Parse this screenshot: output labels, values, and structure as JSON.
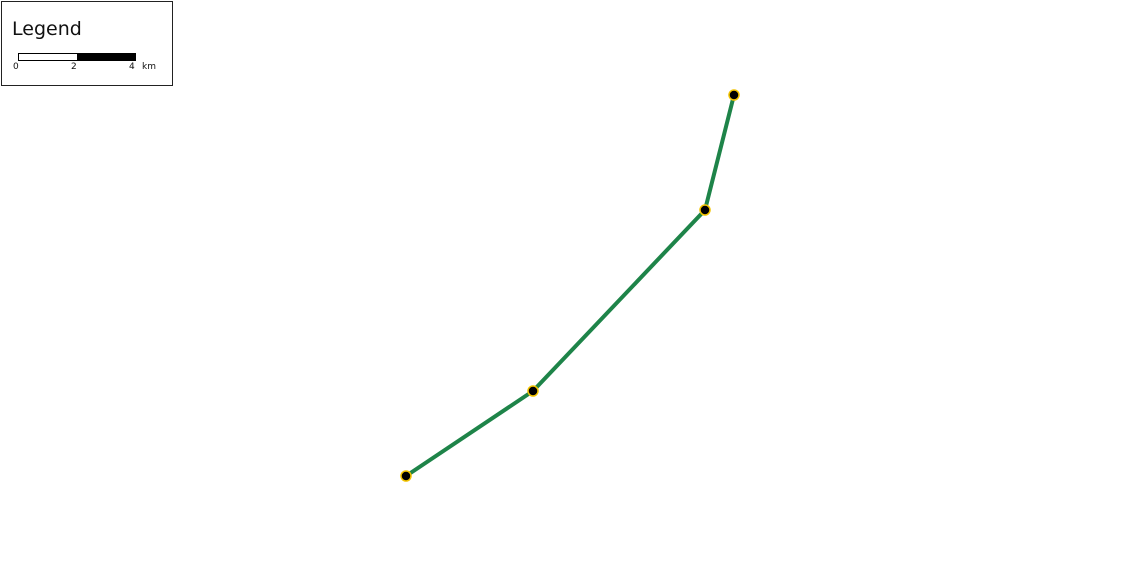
{
  "legend": {
    "title": "Legend",
    "scale_labels": [
      "0",
      "2",
      "4"
    ],
    "scale_unit": "km"
  },
  "route": {
    "line_color": "#1e8449",
    "vertex_fill": "#000000",
    "vertex_stroke": "#f2c300",
    "vertex_count": 4
  }
}
